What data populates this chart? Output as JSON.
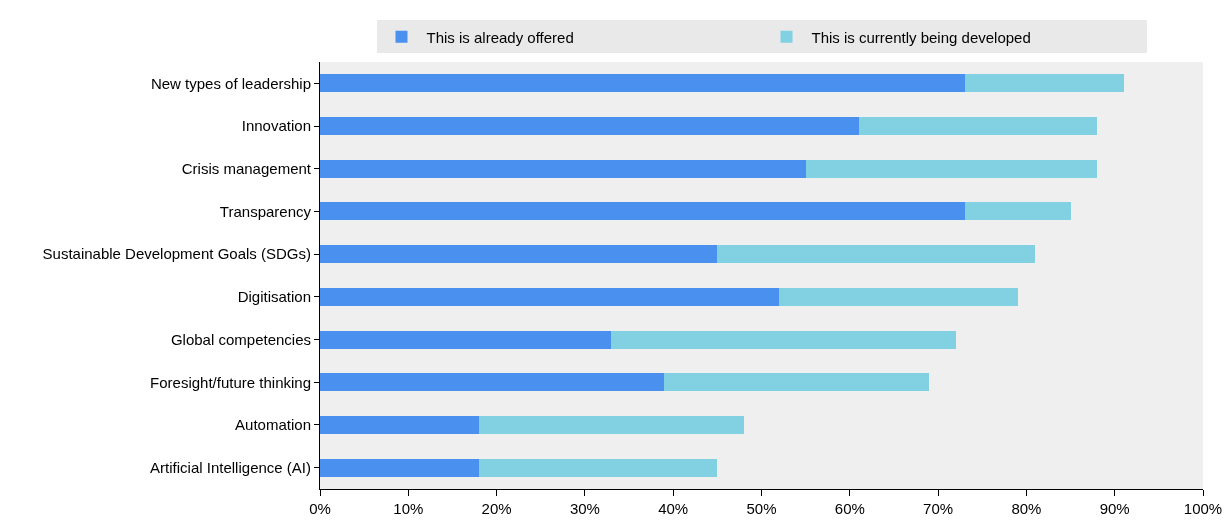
{
  "chart_data": {
    "type": "bar",
    "orientation": "horizontal",
    "stacked": true,
    "categories": [
      "New types of leadership",
      "Innovation",
      "Crisis management",
      "Transparency",
      "Sustainable Development Goals (SDGs)",
      "Digitisation",
      "Global competencies",
      "Foresight/future thinking",
      "Automation",
      "Artificial Intelligence (AI)"
    ],
    "series": [
      {
        "name": "This is already offered",
        "color": "#4a90ee",
        "values": [
          73,
          61,
          55,
          73,
          45,
          52,
          33,
          39,
          18,
          18
        ]
      },
      {
        "name": "This is currently being developed",
        "color": "#82d1e3",
        "values": [
          18,
          27,
          33,
          12,
          36,
          27,
          39,
          30,
          30,
          27
        ]
      }
    ],
    "xlim": [
      0,
      100
    ],
    "xticks": [
      {
        "value": 0,
        "label": "0%"
      },
      {
        "value": 10,
        "label": "10%"
      },
      {
        "value": 20,
        "label": "20%"
      },
      {
        "value": 30,
        "label": "30%"
      },
      {
        "value": 40,
        "label": "40%"
      },
      {
        "value": 50,
        "label": "50%"
      },
      {
        "value": 60,
        "label": "60%"
      },
      {
        "value": 70,
        "label": "70%"
      },
      {
        "value": 80,
        "label": "80%"
      },
      {
        "value": 90,
        "label": "90%"
      },
      {
        "value": 100,
        "label": "100%"
      }
    ],
    "grid": false,
    "legend": "top"
  }
}
